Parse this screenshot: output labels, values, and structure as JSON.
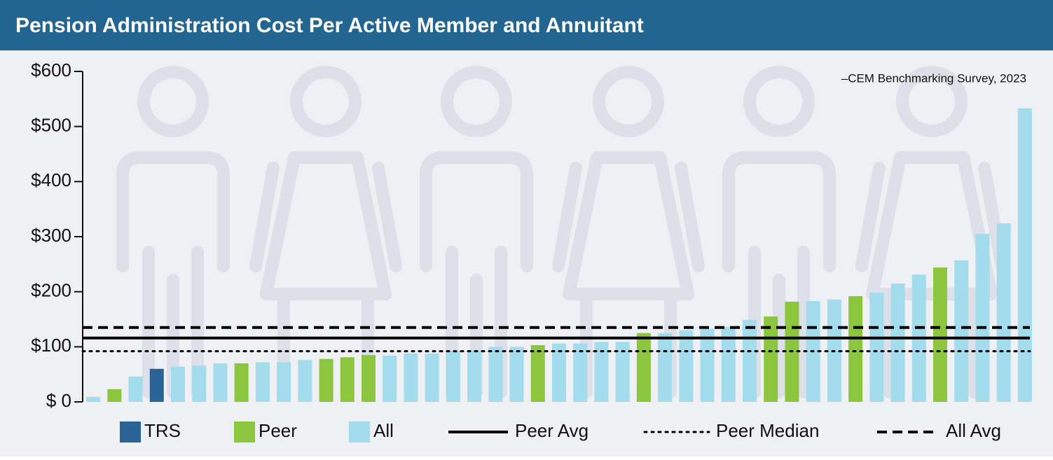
{
  "chart_data": {
    "type": "bar",
    "title": "Pension Administration Cost Per Active Member and Annuitant",
    "source": "–CEM Benchmarking Survey, 2023",
    "categories": [
      null,
      null,
      null,
      null,
      null,
      null,
      null,
      null,
      null,
      null,
      null,
      null,
      null,
      null,
      null,
      null,
      null,
      null,
      null,
      null,
      null,
      null,
      null,
      null,
      null,
      null,
      null,
      null,
      null,
      null,
      null,
      null,
      null,
      null,
      null,
      null,
      null,
      null,
      null,
      null,
      null,
      null,
      null,
      null,
      null
    ],
    "series": [
      {
        "name": "TRS",
        "color": "#2a6496",
        "values": [
          null,
          null,
          null,
          60,
          null,
          null,
          null,
          null,
          null,
          null,
          null,
          null,
          null,
          null,
          null,
          null,
          null,
          null,
          null,
          null,
          null,
          null,
          null,
          null,
          null,
          null,
          null,
          null,
          null,
          null,
          null,
          null,
          null,
          null,
          null,
          null,
          null,
          null,
          null,
          null,
          null,
          null,
          null,
          null,
          null
        ]
      },
      {
        "name": "Peer",
        "color": "#8cc63f",
        "values": [
          null,
          23,
          null,
          null,
          null,
          null,
          null,
          70,
          null,
          null,
          null,
          78,
          81,
          85,
          null,
          null,
          null,
          null,
          null,
          null,
          null,
          103,
          null,
          null,
          null,
          null,
          125,
          null,
          null,
          null,
          null,
          null,
          155,
          182,
          null,
          null,
          192,
          null,
          null,
          null,
          244,
          null,
          null,
          null,
          null
        ]
      },
      {
        "name": "All",
        "color": "#a3dcec",
        "values": [
          9,
          null,
          46,
          null,
          64,
          66,
          70,
          null,
          72,
          72,
          76,
          null,
          null,
          null,
          84,
          88,
          88,
          93,
          94,
          100,
          100,
          null,
          106,
          106,
          109,
          109,
          null,
          125,
          130,
          132,
          136,
          149,
          null,
          null,
          183,
          186,
          null,
          198,
          215,
          231,
          null,
          257,
          305,
          324,
          533
        ]
      }
    ],
    "reference_lines": [
      {
        "name": "Peer Avg",
        "value": 116,
        "style": "solid"
      },
      {
        "name": "Peer Median",
        "value": 92,
        "style": "dotted"
      },
      {
        "name": "All Avg",
        "value": 135,
        "style": "dashed"
      }
    ],
    "ylim": [
      0,
      600
    ],
    "yticks": [
      {
        "value": 0,
        "label": "$ 0"
      },
      {
        "value": 100,
        "label": "$100"
      },
      {
        "value": 200,
        "label": "$200"
      },
      {
        "value": 300,
        "label": "$300"
      },
      {
        "value": 400,
        "label": "$400"
      },
      {
        "value": 500,
        "label": "$500"
      },
      {
        "value": 600,
        "label": "$600"
      }
    ]
  }
}
